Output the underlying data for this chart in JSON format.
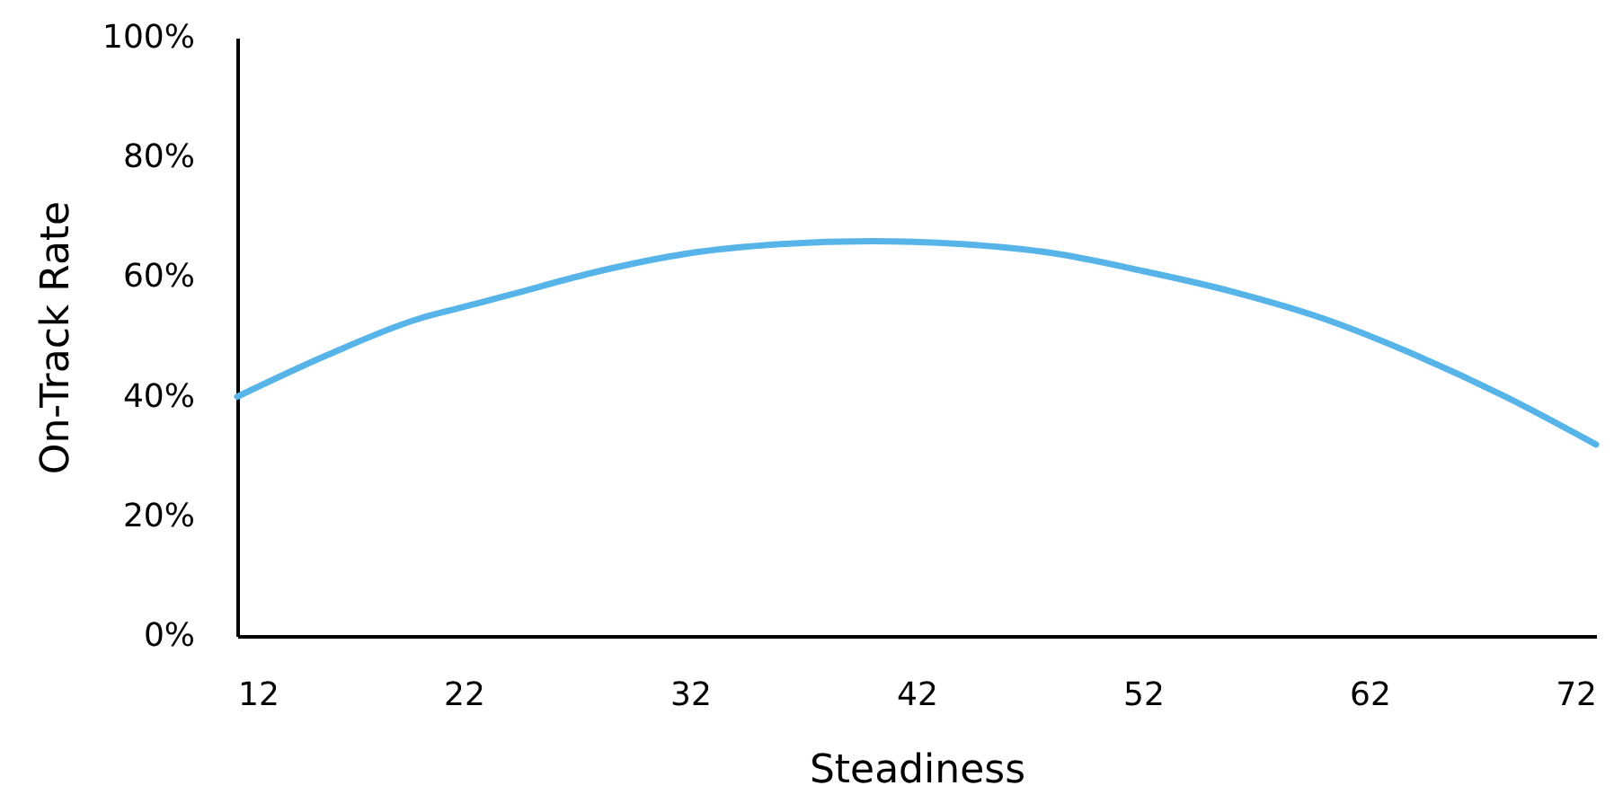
{
  "chart_data": {
    "type": "line",
    "xlabel": "Steadiness",
    "ylabel": "On-Track Rate",
    "xlim": [
      12,
      72
    ],
    "xticks": [
      12,
      22,
      32,
      42,
      52,
      62,
      72
    ],
    "ylim": [
      0,
      100
    ],
    "yticks": [
      {
        "value": 0,
        "label": "0%"
      },
      {
        "value": 20,
        "label": "20%"
      },
      {
        "value": 40,
        "label": "40%"
      },
      {
        "value": 60,
        "label": "60%"
      },
      {
        "value": 80,
        "label": "80%"
      },
      {
        "value": 100,
        "label": "100%"
      }
    ],
    "grid": false,
    "marker": "none",
    "line_style": "solid",
    "series": [
      {
        "color": "#56b4e9",
        "x": [
          12,
          16,
          20,
          22,
          24,
          28,
          32,
          36,
          40,
          44,
          48,
          52,
          56,
          60,
          64,
          68,
          72
        ],
        "values": [
          40,
          47,
          53,
          55,
          57,
          61,
          64,
          65.5,
          66,
          65.5,
          64,
          61,
          57.5,
          53,
          47,
          40,
          32
        ]
      }
    ]
  }
}
